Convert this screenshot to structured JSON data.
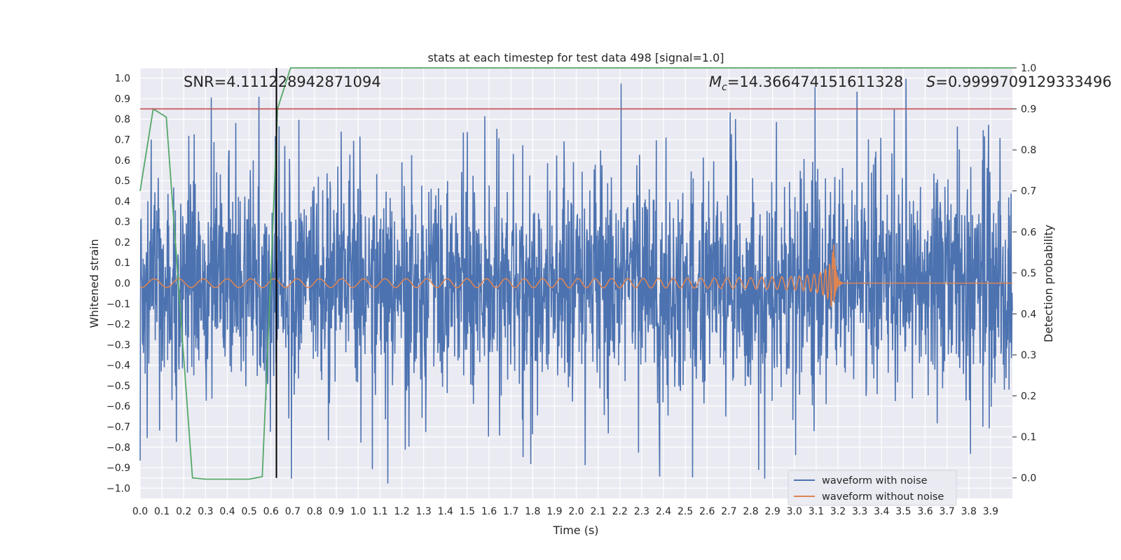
{
  "chart_data": {
    "type": "line",
    "title": "stats at each timestep for test data 498 [signal=1.0]",
    "xlabel": "Time (s)",
    "ylabel": "Whitened strain",
    "y2label": "Detection probability",
    "xlim": [
      0.0,
      4.0
    ],
    "ylim": [
      -1.05,
      1.05
    ],
    "y2lim": [
      -0.05,
      1.0
    ],
    "x_ticks": [
      "0.0",
      "0.1",
      "0.2",
      "0.3",
      "0.4",
      "0.5",
      "0.6",
      "0.7",
      "0.8",
      "0.9",
      "1.0",
      "1.1",
      "1.2",
      "1.3",
      "1.4",
      "1.5",
      "1.6",
      "1.7",
      "1.8",
      "1.9",
      "2.0",
      "2.1",
      "2.2",
      "2.3",
      "2.4",
      "2.5",
      "2.6",
      "2.7",
      "2.8",
      "2.9",
      "3.0",
      "3.1",
      "3.2",
      "3.3",
      "3.4",
      "3.5",
      "3.6",
      "3.7",
      "3.8",
      "3.9"
    ],
    "y_ticks": [
      "1.0",
      "0.9",
      "0.8",
      "0.7",
      "0.6",
      "0.5",
      "0.4",
      "0.3",
      "0.2",
      "0.1",
      "0.0",
      "−0.1",
      "−0.2",
      "−0.3",
      "−0.4",
      "−0.5",
      "−0.6",
      "−0.7",
      "−0.8",
      "−0.9",
      "−1.0"
    ],
    "y2_ticks": [
      "1.0",
      "0.9",
      "0.8",
      "0.7",
      "0.6",
      "0.5",
      "0.4",
      "0.3",
      "0.2",
      "0.1",
      "0.0"
    ],
    "grid": true,
    "legend_position": "lower-right",
    "annotations": {
      "snr": "SNR=4.111228942871094",
      "mc_symbol": "M",
      "mc_sub": "c",
      "mc_value": "=14.366474151611328",
      "s_symbol": "S",
      "s_value": "=0.9999709129333496"
    },
    "series": [
      {
        "name": "waveform with noise",
        "color": "#4c72b0",
        "axis": "left",
        "description_values": "dense whitened noise, amplitude mostly within ±0.6, peaks near ±1.0"
      },
      {
        "name": "waveform without noise",
        "color": "#dd8452",
        "axis": "left",
        "chirp": {
          "start_amp": 0.02,
          "peak_amp": 0.21,
          "merger_time": 3.18,
          "ringdown_end": 3.22
        }
      },
      {
        "color": "#55a868",
        "axis": "right",
        "x": [
          0.0,
          0.06,
          0.12,
          0.24,
          0.3,
          0.5,
          0.56,
          0.6,
          0.63,
          0.69,
          4.0
        ],
        "y": [
          0.7,
          0.9,
          0.88,
          0.0,
          -0.003,
          -0.003,
          0.003,
          0.5,
          0.9,
          1.0,
          1.0
        ]
      }
    ],
    "hlines": [
      {
        "y2": 0.9,
        "color": "#c44e52"
      }
    ],
    "vlines": [
      {
        "x": 0.625,
        "y2_from": 0.0,
        "y2_to": 1.0,
        "color": "#000000"
      }
    ]
  }
}
